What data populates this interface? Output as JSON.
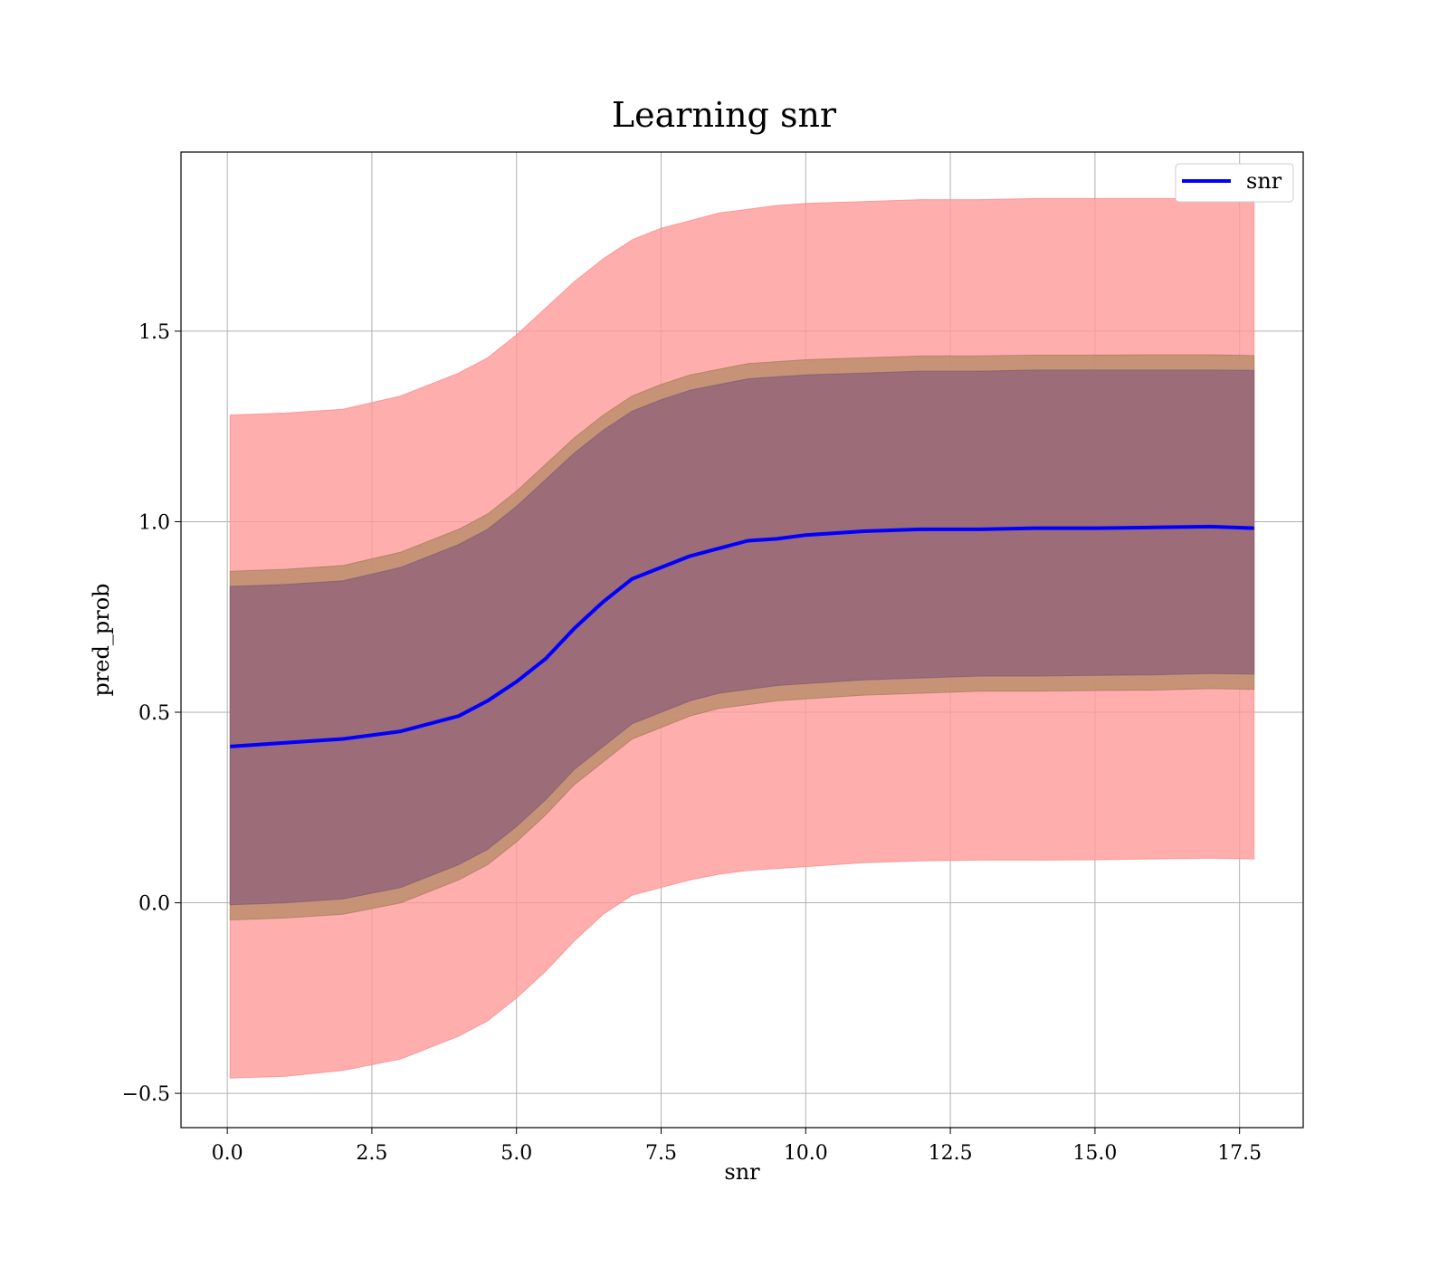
{
  "chart_data": {
    "type": "line",
    "title": "Learning snr",
    "xlabel": "snr",
    "ylabel": "pred_prob",
    "xlim": [
      -0.8,
      18.6
    ],
    "ylim": [
      -0.59,
      1.97
    ],
    "xticks": [
      0.0,
      2.5,
      5.0,
      7.5,
      10.0,
      12.5,
      15.0,
      17.5
    ],
    "xtick_labels": [
      "0.0",
      "2.5",
      "5.0",
      "7.5",
      "10.0",
      "12.5",
      "15.0",
      "17.5"
    ],
    "yticks": [
      -0.5,
      0.0,
      0.5,
      1.0,
      1.5
    ],
    "ytick_labels": [
      "−0.5",
      "0.0",
      "0.5",
      "1.0",
      "1.5"
    ],
    "grid": true,
    "legend": {
      "position": "top-right",
      "entries": [
        "snr"
      ]
    },
    "colors": {
      "line": "#0000ff",
      "outer_band": "#ff9a9a",
      "mid_band": "#c09070",
      "inner_band": "#9c6c78",
      "grid": "#b0b0b0"
    },
    "x": [
      0.05,
      1.0,
      2.0,
      3.0,
      4.0,
      4.5,
      5.0,
      5.5,
      6.0,
      6.5,
      7.0,
      7.5,
      8.0,
      8.5,
      9.0,
      9.5,
      10.0,
      11.0,
      12.0,
      13.0,
      14.0,
      15.0,
      16.0,
      17.0,
      17.75
    ],
    "series": [
      {
        "name": "snr",
        "values": [
          0.41,
          0.42,
          0.43,
          0.45,
          0.49,
          0.53,
          0.58,
          0.64,
          0.72,
          0.79,
          0.85,
          0.88,
          0.91,
          0.93,
          0.95,
          0.955,
          0.965,
          0.975,
          0.98,
          0.98,
          0.983,
          0.983,
          0.985,
          0.987,
          0.983
        ]
      }
    ],
    "bands": [
      {
        "role": "outer",
        "upper": [
          1.28,
          1.285,
          1.295,
          1.33,
          1.39,
          1.43,
          1.49,
          1.56,
          1.63,
          1.69,
          1.74,
          1.77,
          1.79,
          1.81,
          1.82,
          1.83,
          1.835,
          1.84,
          1.845,
          1.845,
          1.848,
          1.848,
          1.848,
          1.848,
          1.848
        ],
        "lower": [
          -0.46,
          -0.455,
          -0.44,
          -0.41,
          -0.35,
          -0.31,
          -0.25,
          -0.18,
          -0.1,
          -0.03,
          0.02,
          0.04,
          0.06,
          0.075,
          0.085,
          0.09,
          0.095,
          0.105,
          0.11,
          0.112,
          0.112,
          0.113,
          0.115,
          0.117,
          0.115
        ]
      },
      {
        "role": "middle",
        "upper": [
          0.87,
          0.875,
          0.885,
          0.92,
          0.98,
          1.02,
          1.08,
          1.15,
          1.22,
          1.28,
          1.33,
          1.36,
          1.385,
          1.4,
          1.415,
          1.42,
          1.425,
          1.43,
          1.435,
          1.435,
          1.437,
          1.437,
          1.438,
          1.438,
          1.436
        ],
        "lower": [
          -0.045,
          -0.04,
          -0.03,
          0.0,
          0.06,
          0.1,
          0.16,
          0.23,
          0.31,
          0.37,
          0.43,
          0.46,
          0.49,
          0.51,
          0.52,
          0.53,
          0.535,
          0.545,
          0.55,
          0.555,
          0.555,
          0.557,
          0.558,
          0.562,
          0.56
        ]
      },
      {
        "role": "inner",
        "upper": [
          0.83,
          0.835,
          0.845,
          0.88,
          0.94,
          0.98,
          1.04,
          1.11,
          1.18,
          1.24,
          1.29,
          1.32,
          1.345,
          1.36,
          1.375,
          1.38,
          1.385,
          1.39,
          1.395,
          1.395,
          1.398,
          1.398,
          1.398,
          1.398,
          1.397
        ],
        "lower": [
          -0.005,
          0.0,
          0.01,
          0.04,
          0.1,
          0.14,
          0.2,
          0.27,
          0.35,
          0.41,
          0.47,
          0.5,
          0.53,
          0.55,
          0.56,
          0.57,
          0.575,
          0.585,
          0.59,
          0.595,
          0.595,
          0.597,
          0.598,
          0.602,
          0.6
        ]
      }
    ]
  }
}
